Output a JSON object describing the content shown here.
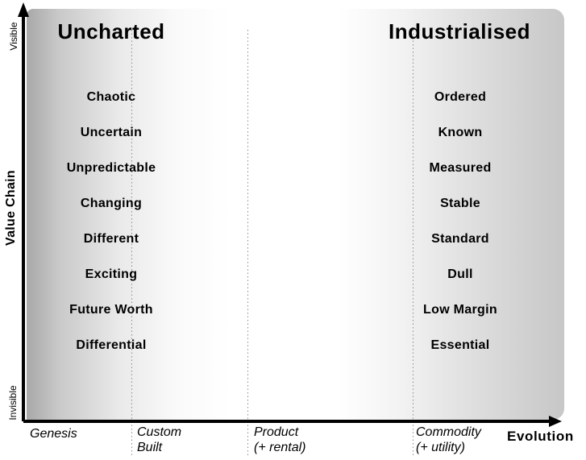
{
  "titles": {
    "left": "Uncharted",
    "right": "Industrialised"
  },
  "y_axis": {
    "label": "Value Chain",
    "top": "Visible",
    "bottom": "Invisible"
  },
  "x_axis": {
    "label": "Evolution",
    "stages": [
      {
        "line1": "Genesis",
        "line2": ""
      },
      {
        "line1": "Custom",
        "line2": "Built"
      },
      {
        "line1": "Product",
        "line2": "(+ rental)"
      },
      {
        "line1": "Commodity",
        "line2": "(+ utility)"
      }
    ]
  },
  "uncharted_traits": [
    "Chaotic",
    "Uncertain",
    "Unpredictable",
    "Changing",
    "Different",
    "Exciting",
    "Future Worth",
    "Differential"
  ],
  "industrialised_traits": [
    "Ordered",
    "Known",
    "Measured",
    "Stable",
    "Standard",
    "Dull",
    "Low Margin",
    "Essential"
  ],
  "colors": {
    "left_shade": "#a8a8a8",
    "right_shade": "#c7c7c7",
    "dotted_line": "#8a8a8a",
    "text": "#000000",
    "background": "#ffffff"
  }
}
